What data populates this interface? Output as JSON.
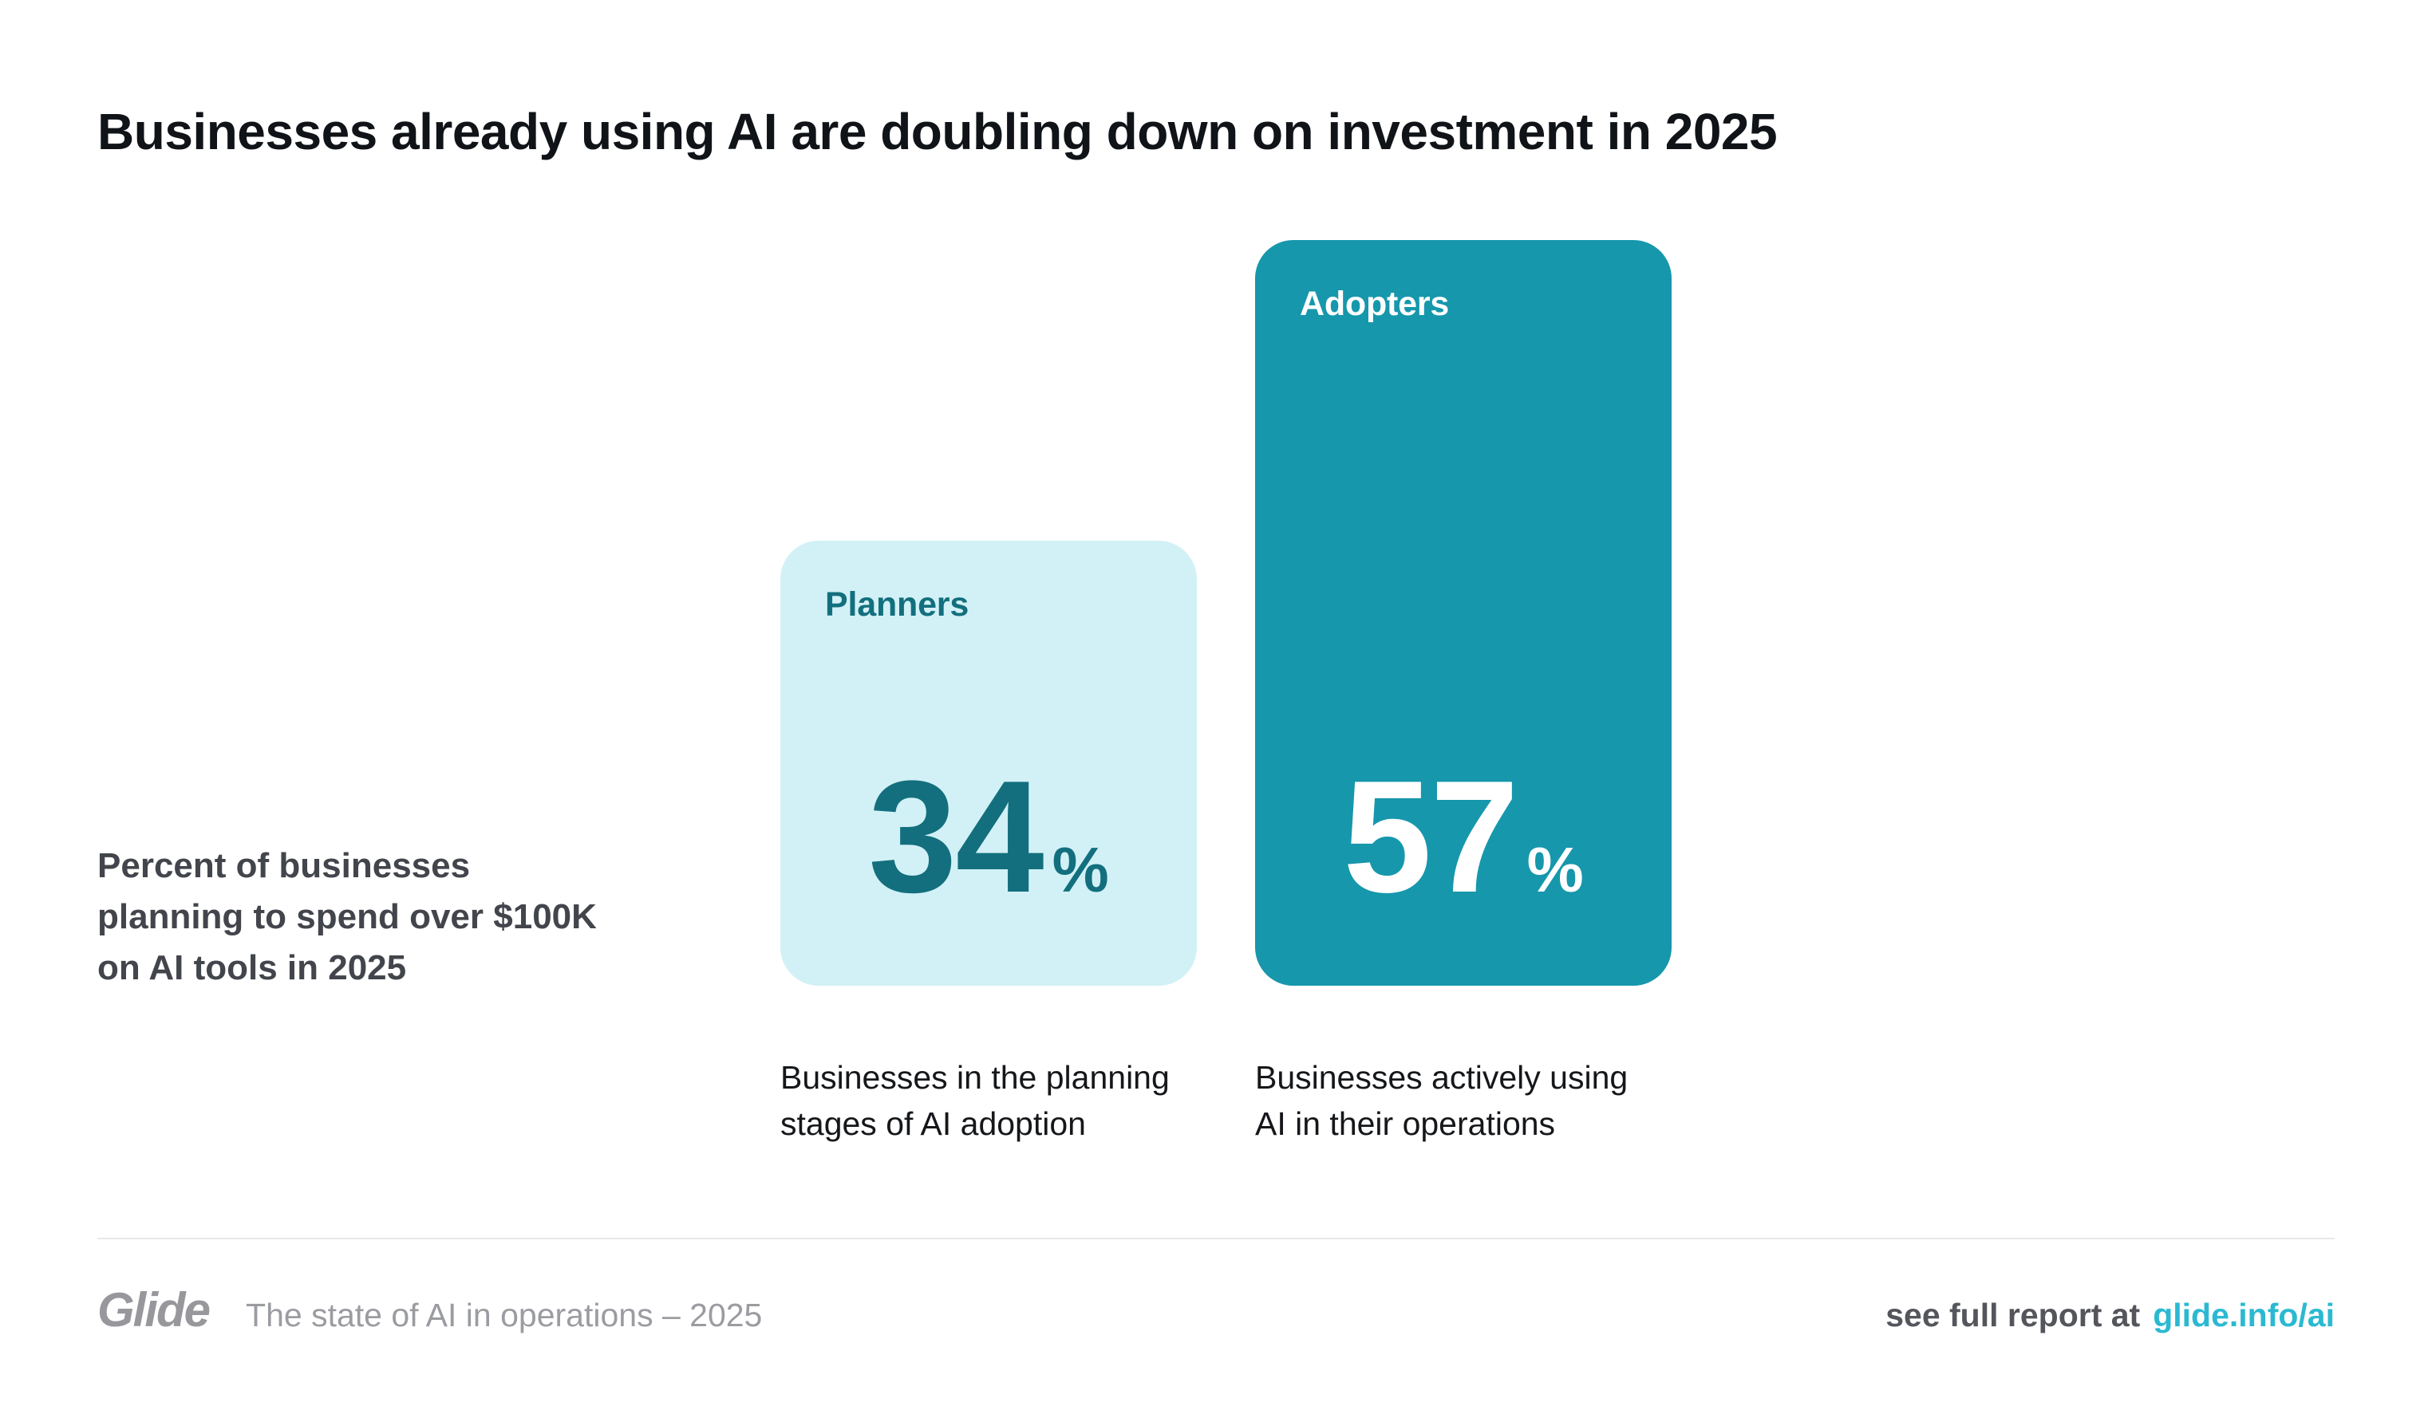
{
  "header": {
    "title": "Businesses already using AI are doubling down on investment in 2025"
  },
  "annotation": {
    "text": "Percent of businesses\nplanning to spend over $100K\non AI tools in 2025"
  },
  "chart_data": {
    "type": "bar",
    "title": "Businesses already using AI are doubling down on investment in 2025",
    "subtitle": "Percent of businesses planning to spend over $100K on AI tools in 2025",
    "categories": [
      "Planners",
      "Adopters"
    ],
    "values": [
      34,
      57
    ],
    "unit": "%",
    "captions": [
      "Businesses in the planning\nstages of AI adoption",
      "Businesses actively using\nAI in their operations"
    ],
    "bar_colors": [
      "#D2F1F6",
      "#1697AC"
    ],
    "bar_text_colors": [
      "#136F7E",
      "#FFFFFF"
    ],
    "axes": "none",
    "gridlines": false,
    "value_labels_inside_bars": true
  },
  "footer": {
    "logo_text": "Glide",
    "tagline": "The state of AI in operations – 2025",
    "report_prefix": "see full report at",
    "report_link": "glide.info/ai",
    "link_color": "#2BB9D2"
  }
}
